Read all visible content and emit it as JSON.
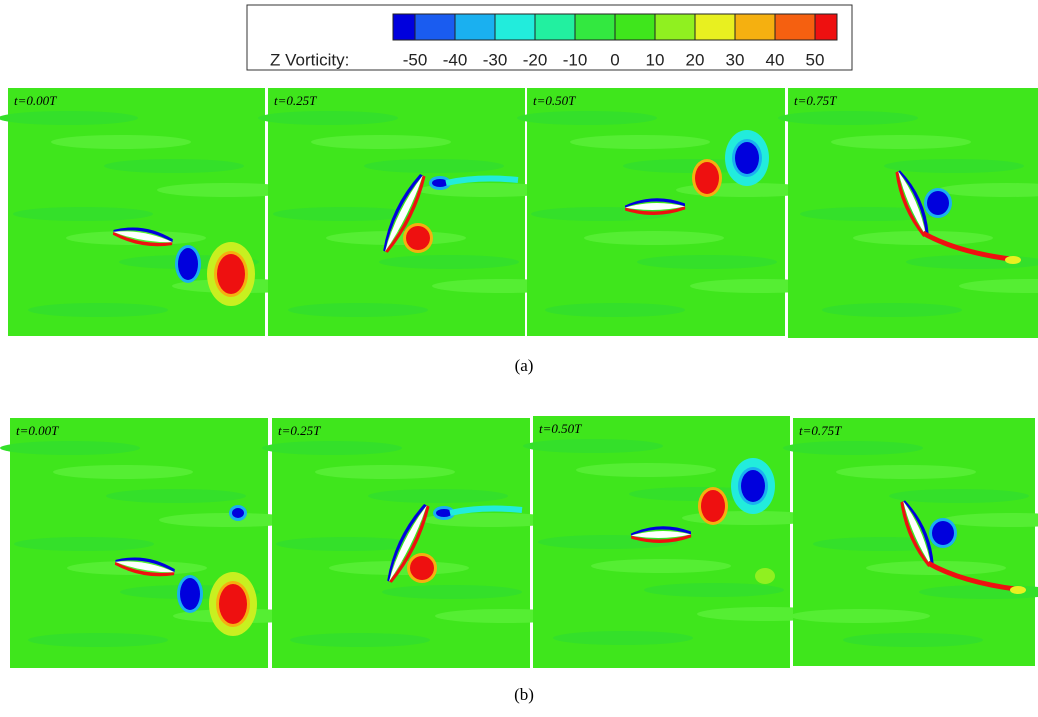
{
  "legend": {
    "title": "Z Vorticity:",
    "levels": [
      -50,
      -40,
      -30,
      -20,
      -10,
      0,
      10,
      20,
      30,
      40,
      50
    ],
    "colors": [
      "#0000dd",
      "#1a5cf0",
      "#1ab0f0",
      "#22ecdc",
      "#22f0a0",
      "#33e840",
      "#3fe61c",
      "#90f020",
      "#e8f020",
      "#f5b010",
      "#f56010",
      "#ee1010"
    ]
  },
  "panels": [
    {
      "caption": "(a)",
      "frames": [
        "t=0.00T",
        "t=0.25T",
        "t=0.50T",
        "t=0.75T"
      ]
    },
    {
      "caption": "(b)",
      "frames": [
        "t=0.00T",
        "t=0.25T",
        "t=0.50T",
        "t=0.75T"
      ]
    }
  ]
}
